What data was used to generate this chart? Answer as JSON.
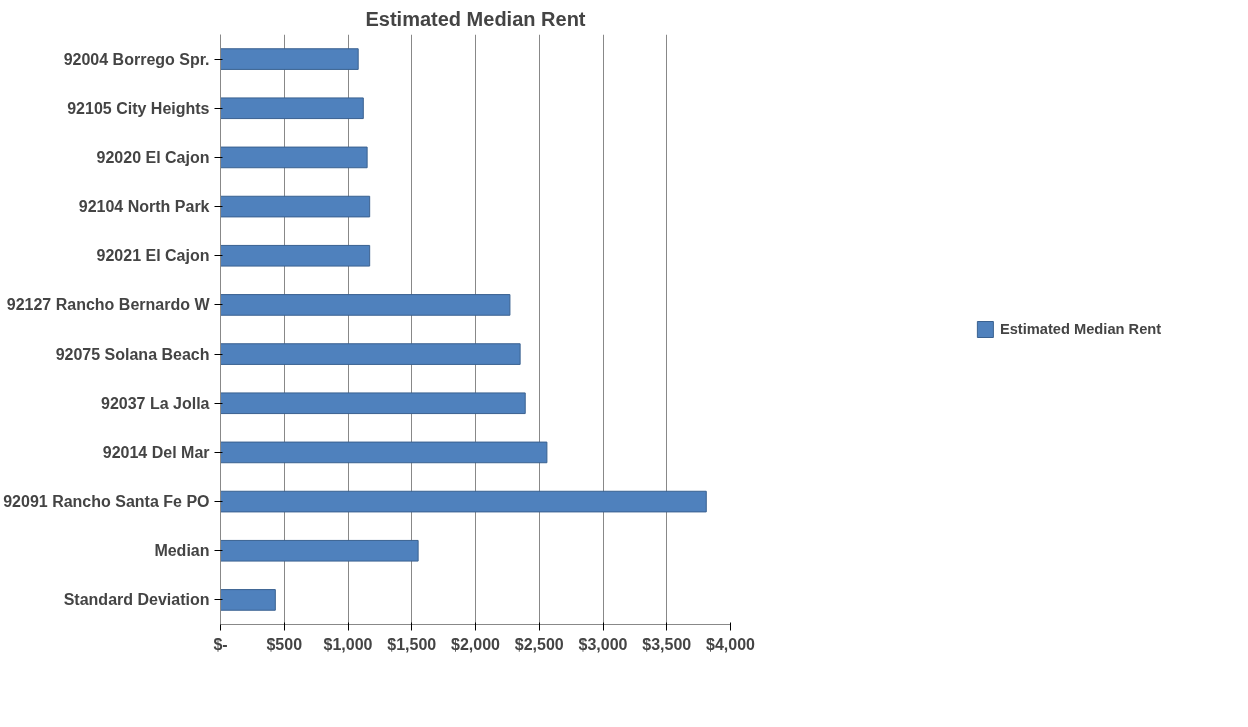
{
  "chart_data": {
    "type": "bar",
    "orientation": "horizontal",
    "title": "Estimated Median Rent",
    "categories": [
      "92004 Borrego Spr.",
      "92105 City Heights",
      "92020 El Cajon",
      "92104 North Park",
      "92021 El Cajon",
      "92127 Rancho Bernardo W",
      "92075 Solana Beach",
      "92037 La Jolla",
      "92014 Del Mar",
      "92091 Rancho Santa Fe PO",
      "Median",
      "Standard Deviation"
    ],
    "series": [
      {
        "name": "Estimated Median Rent",
        "color": "#4f81bd",
        "values": [
          1080,
          1120,
          1150,
          1170,
          1170,
          2270,
          2350,
          2390,
          2560,
          3810,
          1550,
          430
        ]
      }
    ],
    "xlim": [
      0,
      4000
    ],
    "xticks": [
      {
        "value": 0,
        "label": "$-"
      },
      {
        "value": 500,
        "label": "$500"
      },
      {
        "value": 1000,
        "label": "$1,000"
      },
      {
        "value": 1500,
        "label": "$1,500"
      },
      {
        "value": 2000,
        "label": "$2,000"
      },
      {
        "value": 2500,
        "label": "$2,500"
      },
      {
        "value": 3000,
        "label": "$3,000"
      },
      {
        "value": 3500,
        "label": "$3,500"
      },
      {
        "value": 4000,
        "label": "$4,000"
      }
    ],
    "grid": "x",
    "legend": "right"
  }
}
